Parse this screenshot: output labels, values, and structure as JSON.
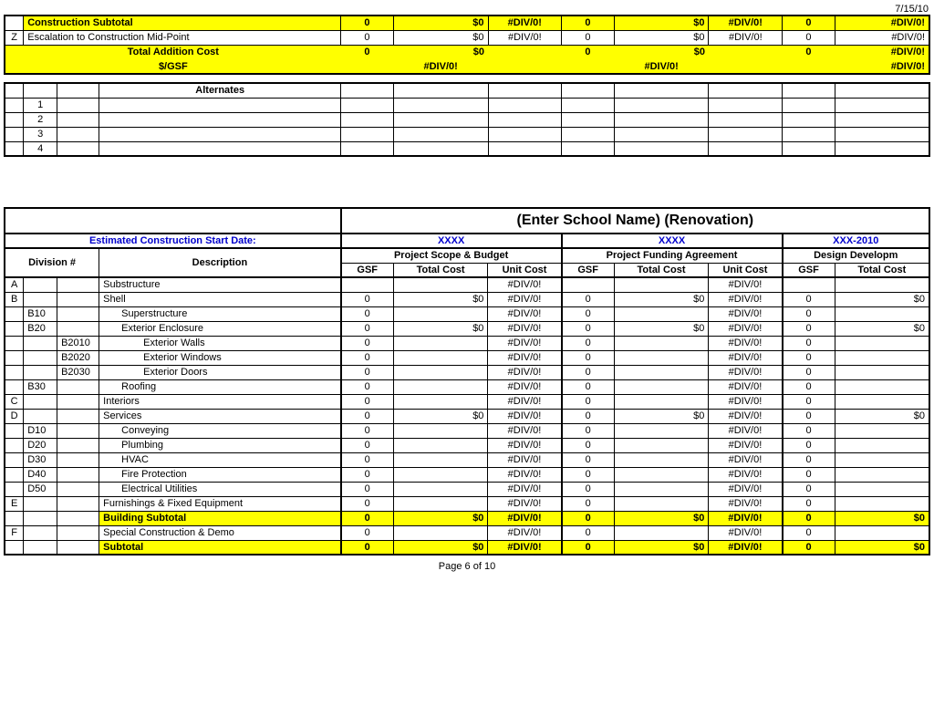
{
  "colors": {
    "highlight": "#ffff00",
    "link": "#0000cc",
    "border": "#000000",
    "bg": "#ffffff"
  },
  "date_top": "7/15/10",
  "top": {
    "construction_subtotal": {
      "label": "Construction Subtotal",
      "g1": {
        "gsf": "0",
        "cost": "$0",
        "unit": "#DIV/0!"
      },
      "g2": {
        "gsf": "0",
        "cost": "$0",
        "unit": "#DIV/0!"
      },
      "g3": {
        "gsf": "0",
        "cost": "#DIV/0!"
      }
    },
    "escalation": {
      "code": "Z",
      "label": "Escalation to Construction Mid-Point",
      "g1": {
        "gsf": "0",
        "cost": "$0",
        "unit": "#DIV/0!"
      },
      "g2": {
        "gsf": "0",
        "cost": "$0",
        "unit": "#DIV/0!"
      },
      "g3": {
        "gsf": "0",
        "cost": "#DIV/0!"
      }
    },
    "total_addition": {
      "label": "Total Addition Cost",
      "g1": {
        "gsf": "0",
        "cost": "$0"
      },
      "g2": {
        "gsf": "0",
        "cost": "$0"
      },
      "g3": {
        "gsf": "0",
        "cost": "#DIV/0!"
      }
    },
    "per_gsf": {
      "label": "$/GSF",
      "g1": "#DIV/0!",
      "g2": "#DIV/0!",
      "g3": "#DIV/0!"
    }
  },
  "alternates": {
    "header": "Alternates",
    "rows": [
      "1",
      "2",
      "3",
      "4"
    ]
  },
  "section2": {
    "title": "(Enter School Name) (Renovation)",
    "start_date_label": "Estimated Construction Start Date:",
    "col_dates": {
      "d1": "XXXX",
      "d2": "XXXX",
      "d3": "XXX-2010"
    },
    "group_headers": {
      "g1": "Project Scope & Budget",
      "g2": "Project Funding Agreement",
      "g3": "Design Developm"
    },
    "sub_headers": {
      "div": "Division #",
      "desc": "Description",
      "gsf": "GSF",
      "tc": "Total Cost",
      "uc": "Unit Cost"
    },
    "rows": [
      {
        "a": "A",
        "b": "",
        "c": "",
        "desc": "Substructure",
        "g1": {
          "gsf": "",
          "cost": "",
          "unit": "#DIV/0!"
        },
        "g2": {
          "gsf": "",
          "cost": "",
          "unit": "#DIV/0!"
        },
        "g3": {
          "gsf": "",
          "cost": ""
        }
      },
      {
        "a": "B",
        "b": "",
        "c": "",
        "desc": "Shell",
        "g1": {
          "gsf": "0",
          "cost": "$0",
          "unit": "#DIV/0!"
        },
        "g2": {
          "gsf": "0",
          "cost": "$0",
          "unit": "#DIV/0!"
        },
        "g3": {
          "gsf": "0",
          "cost": "$0"
        }
      },
      {
        "a": "",
        "b": "B10",
        "c": "",
        "desc": "Superstructure",
        "indent": 1,
        "g1": {
          "gsf": "0",
          "cost": "",
          "unit": "#DIV/0!"
        },
        "g2": {
          "gsf": "0",
          "cost": "",
          "unit": "#DIV/0!"
        },
        "g3": {
          "gsf": "0",
          "cost": ""
        }
      },
      {
        "a": "",
        "b": "B20",
        "c": "",
        "desc": "Exterior Enclosure",
        "indent": 1,
        "g1": {
          "gsf": "0",
          "cost": "$0",
          "unit": "#DIV/0!"
        },
        "g2": {
          "gsf": "0",
          "cost": "$0",
          "unit": "#DIV/0!"
        },
        "g3": {
          "gsf": "0",
          "cost": "$0"
        }
      },
      {
        "a": "",
        "b": "",
        "c": "B2010",
        "desc": "Exterior Walls",
        "indent": 2,
        "g1": {
          "gsf": "0",
          "cost": "",
          "unit": "#DIV/0!"
        },
        "g2": {
          "gsf": "0",
          "cost": "",
          "unit": "#DIV/0!"
        },
        "g3": {
          "gsf": "0",
          "cost": ""
        }
      },
      {
        "a": "",
        "b": "",
        "c": "B2020",
        "desc": "Exterior Windows",
        "indent": 2,
        "g1": {
          "gsf": "0",
          "cost": "",
          "unit": "#DIV/0!"
        },
        "g2": {
          "gsf": "0",
          "cost": "",
          "unit": "#DIV/0!"
        },
        "g3": {
          "gsf": "0",
          "cost": ""
        }
      },
      {
        "a": "",
        "b": "",
        "c": "B2030",
        "desc": "Exterior Doors",
        "indent": 2,
        "g1": {
          "gsf": "0",
          "cost": "",
          "unit": "#DIV/0!"
        },
        "g2": {
          "gsf": "0",
          "cost": "",
          "unit": "#DIV/0!"
        },
        "g3": {
          "gsf": "0",
          "cost": ""
        }
      },
      {
        "a": "",
        "b": "B30",
        "c": "",
        "desc": "Roofing",
        "indent": 1,
        "g1": {
          "gsf": "0",
          "cost": "",
          "unit": "#DIV/0!"
        },
        "g2": {
          "gsf": "0",
          "cost": "",
          "unit": "#DIV/0!"
        },
        "g3": {
          "gsf": "0",
          "cost": ""
        }
      },
      {
        "a": "C",
        "b": "",
        "c": "",
        "desc": "Interiors",
        "g1": {
          "gsf": "0",
          "cost": "",
          "unit": "#DIV/0!"
        },
        "g2": {
          "gsf": "0",
          "cost": "",
          "unit": "#DIV/0!"
        },
        "g3": {
          "gsf": "0",
          "cost": ""
        }
      },
      {
        "a": "D",
        "b": "",
        "c": "",
        "desc": "Services",
        "g1": {
          "gsf": "0",
          "cost": "$0",
          "unit": "#DIV/0!"
        },
        "g2": {
          "gsf": "0",
          "cost": "$0",
          "unit": "#DIV/0!"
        },
        "g3": {
          "gsf": "0",
          "cost": "$0"
        }
      },
      {
        "a": "",
        "b": "D10",
        "c": "",
        "desc": "Conveying",
        "indent": 1,
        "g1": {
          "gsf": "0",
          "cost": "",
          "unit": "#DIV/0!"
        },
        "g2": {
          "gsf": "0",
          "cost": "",
          "unit": "#DIV/0!"
        },
        "g3": {
          "gsf": "0",
          "cost": ""
        }
      },
      {
        "a": "",
        "b": "D20",
        "c": "",
        "desc": "Plumbing",
        "indent": 1,
        "g1": {
          "gsf": "0",
          "cost": "",
          "unit": "#DIV/0!"
        },
        "g2": {
          "gsf": "0",
          "cost": "",
          "unit": "#DIV/0!"
        },
        "g3": {
          "gsf": "0",
          "cost": ""
        }
      },
      {
        "a": "",
        "b": "D30",
        "c": "",
        "desc": "HVAC",
        "indent": 1,
        "g1": {
          "gsf": "0",
          "cost": "",
          "unit": "#DIV/0!"
        },
        "g2": {
          "gsf": "0",
          "cost": "",
          "unit": "#DIV/0!"
        },
        "g3": {
          "gsf": "0",
          "cost": ""
        }
      },
      {
        "a": "",
        "b": "D40",
        "c": "",
        "desc": "Fire Protection",
        "indent": 1,
        "g1": {
          "gsf": "0",
          "cost": "",
          "unit": "#DIV/0!"
        },
        "g2": {
          "gsf": "0",
          "cost": "",
          "unit": "#DIV/0!"
        },
        "g3": {
          "gsf": "0",
          "cost": ""
        }
      },
      {
        "a": "",
        "b": "D50",
        "c": "",
        "desc": "Electrical Utilities",
        "indent": 1,
        "g1": {
          "gsf": "0",
          "cost": "",
          "unit": "#DIV/0!"
        },
        "g2": {
          "gsf": "0",
          "cost": "",
          "unit": "#DIV/0!"
        },
        "g3": {
          "gsf": "0",
          "cost": ""
        }
      },
      {
        "a": "E",
        "b": "",
        "c": "",
        "desc": "Furnishings & Fixed Equipment",
        "g1": {
          "gsf": "0",
          "cost": "",
          "unit": "#DIV/0!"
        },
        "g2": {
          "gsf": "0",
          "cost": "",
          "unit": "#DIV/0!"
        },
        "g3": {
          "gsf": "0",
          "cost": ""
        }
      },
      {
        "a": "",
        "b": "",
        "c": "",
        "desc": "Building Subtotal",
        "yellow": true,
        "bold": true,
        "g1": {
          "gsf": "0",
          "cost": "$0",
          "unit": "#DIV/0!"
        },
        "g2": {
          "gsf": "0",
          "cost": "$0",
          "unit": "#DIV/0!"
        },
        "g3": {
          "gsf": "0",
          "cost": "$0"
        }
      },
      {
        "a": "F",
        "b": "",
        "c": "",
        "desc": "Special Construction & Demo",
        "g1": {
          "gsf": "0",
          "cost": "",
          "unit": "#DIV/0!"
        },
        "g2": {
          "gsf": "0",
          "cost": "",
          "unit": "#DIV/0!"
        },
        "g3": {
          "gsf": "0",
          "cost": ""
        }
      },
      {
        "a": "",
        "b": "",
        "c": "",
        "desc": "Subtotal",
        "yellow": true,
        "bold": true,
        "g1": {
          "gsf": "0",
          "cost": "$0",
          "unit": "#DIV/0!"
        },
        "g2": {
          "gsf": "0",
          "cost": "$0",
          "unit": "#DIV/0!"
        },
        "g3": {
          "gsf": "0",
          "cost": "$0"
        }
      }
    ]
  },
  "footer": "Page 6 of 10"
}
